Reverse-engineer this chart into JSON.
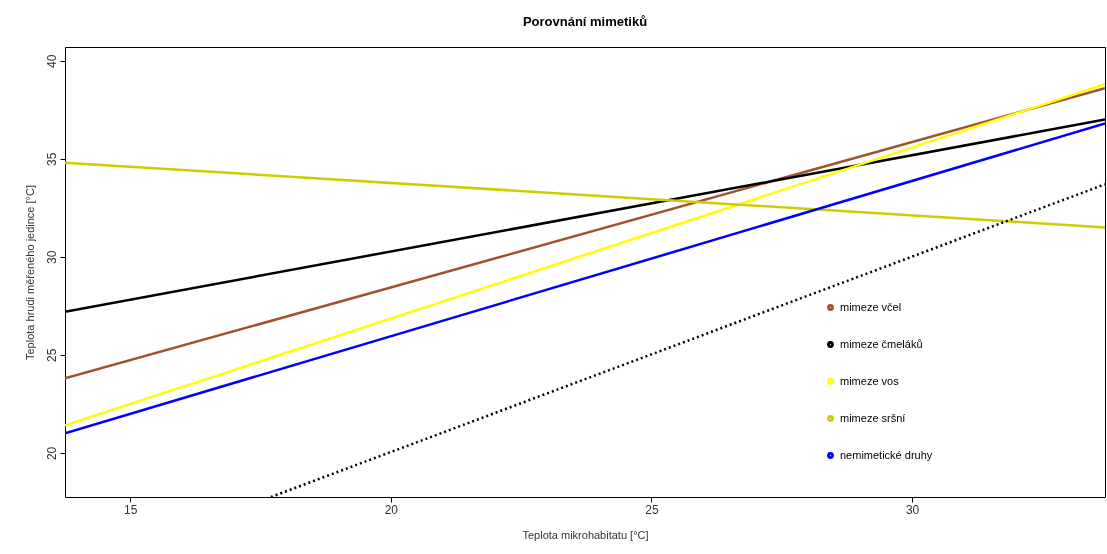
{
  "chart_data": {
    "type": "line",
    "title": "Porovnání mimetiků",
    "xlabel": "Teplota mikrohabitatu [°C]",
    "ylabel": "Teplota hrudi měřeného jedince [°C]",
    "xlim": [
      13.75,
      33.7
    ],
    "ylim": [
      17.75,
      40.7
    ],
    "xticks": [
      15,
      20,
      25,
      30
    ],
    "yticks": [
      20,
      25,
      30,
      35,
      40
    ],
    "grid": false,
    "legend": "bottom right",
    "marker": "none",
    "series": [
      {
        "name": "mimeze včel",
        "color": "#a0522d",
        "x": [
          13.75,
          33.7
        ],
        "values": [
          23.8,
          38.6
        ]
      },
      {
        "name": "mimeze čmeláků",
        "color": "#000000",
        "x": [
          13.75,
          33.7
        ],
        "values": [
          27.2,
          37.0
        ]
      },
      {
        "name": "mimeze vos",
        "color": "#ffff00",
        "x": [
          13.75,
          33.7
        ],
        "values": [
          21.4,
          38.8
        ]
      },
      {
        "name": "mimeze sršní",
        "color": "#cdcd00",
        "x": [
          13.75,
          33.7
        ],
        "values": [
          34.8,
          31.5
        ]
      },
      {
        "name": "nemimetické druhy",
        "color": "#0000ff",
        "x": [
          13.75,
          33.7
        ],
        "values": [
          21.0,
          36.8
        ]
      },
      {
        "color": "#000000",
        "line_style": "dotted",
        "x": [
          17.7,
          33.7
        ],
        "values": [
          17.75,
          33.7
        ]
      }
    ]
  }
}
